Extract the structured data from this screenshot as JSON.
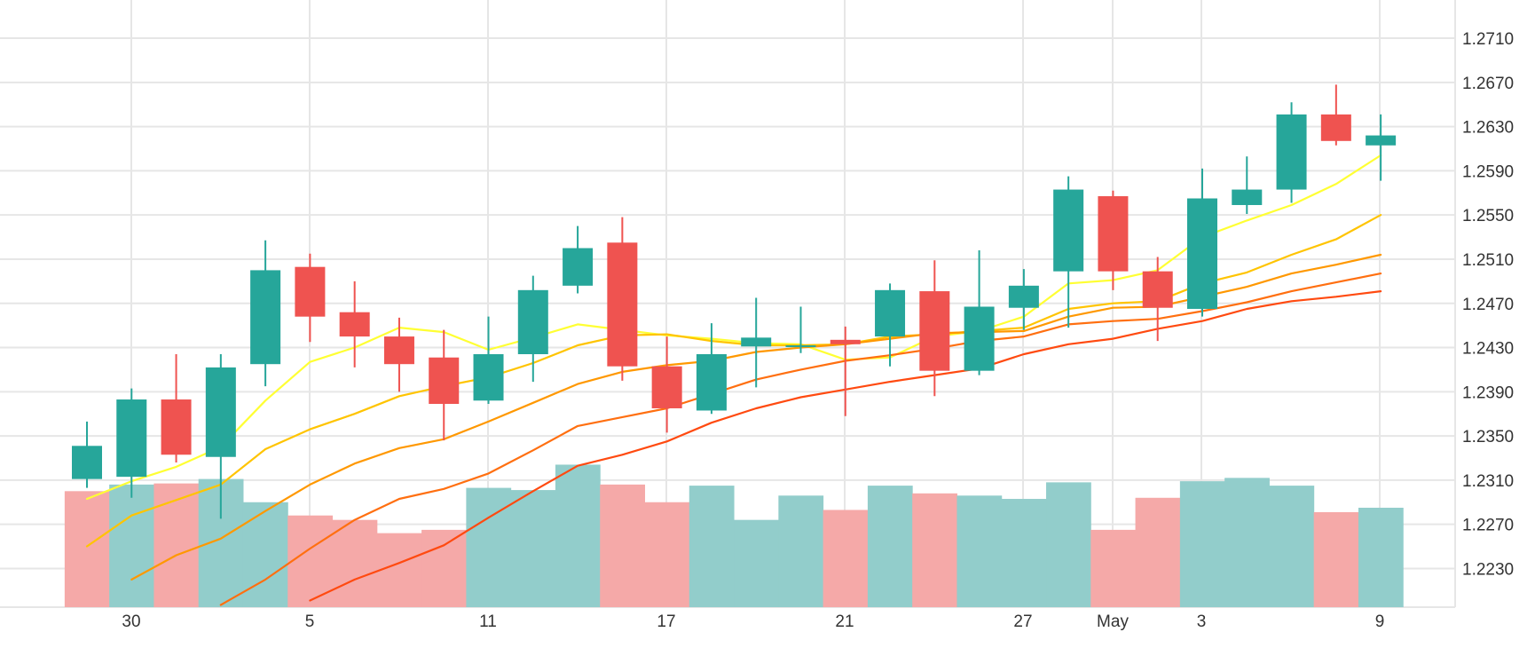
{
  "chart_data": {
    "type": "candlestick",
    "x_ticks": [
      "30",
      "5",
      "11",
      "17",
      "21",
      "27",
      "May",
      "3",
      "9"
    ],
    "y_ticks": [
      "1.2230",
      "1.2270",
      "1.2310",
      "1.2350",
      "1.2390",
      "1.2430",
      "1.2470",
      "1.2510",
      "1.2550",
      "1.2590",
      "1.2630",
      "1.2670",
      "1.2710"
    ],
    "y_range": [
      1.2195,
      1.2745
    ],
    "grid": true,
    "colors": {
      "up": "#26a69a",
      "down": "#ef5350",
      "volume_up": "#92cdcb",
      "volume_down": "#f5a9a8",
      "grid": "#e6e6e6",
      "ma": [
        "#ffff33",
        "#ffc400",
        "#ff9800",
        "#ff6f10",
        "#ff4a10"
      ]
    },
    "candles": [
      {
        "o": 1.2311,
        "h": 1.2363,
        "l": 1.2303,
        "c": 1.2341
      },
      {
        "o": 1.2313,
        "h": 1.2393,
        "l": 1.2294,
        "c": 1.2383
      },
      {
        "o": 1.2383,
        "h": 1.2424,
        "l": 1.2326,
        "c": 1.2333
      },
      {
        "o": 1.2331,
        "h": 1.2424,
        "l": 1.2275,
        "c": 1.2412
      },
      {
        "o": 1.2415,
        "h": 1.2527,
        "l": 1.2395,
        "c": 1.25
      },
      {
        "o": 1.2503,
        "h": 1.2515,
        "l": 1.2435,
        "c": 1.2458
      },
      {
        "o": 1.2462,
        "h": 1.249,
        "l": 1.2412,
        "c": 1.244
      },
      {
        "o": 1.244,
        "h": 1.2457,
        "l": 1.239,
        "c": 1.2415
      },
      {
        "o": 1.2421,
        "h": 1.2446,
        "l": 1.2346,
        "c": 1.2379
      },
      {
        "o": 1.2382,
        "h": 1.2458,
        "l": 1.2379,
        "c": 1.2424
      },
      {
        "o": 1.2424,
        "h": 1.2495,
        "l": 1.2399,
        "c": 1.2482
      },
      {
        "o": 1.2486,
        "h": 1.254,
        "l": 1.2479,
        "c": 1.252
      },
      {
        "o": 1.2525,
        "h": 1.2548,
        "l": 1.24,
        "c": 1.2413
      },
      {
        "o": 1.2413,
        "h": 1.244,
        "l": 1.2353,
        "c": 1.2375
      },
      {
        "o": 1.2373,
        "h": 1.2452,
        "l": 1.237,
        "c": 1.2424
      },
      {
        "o": 1.2431,
        "h": 1.2475,
        "l": 1.2394,
        "c": 1.2439
      },
      {
        "o": 1.2432,
        "h": 1.2467,
        "l": 1.2425,
        "c": 1.2432
      },
      {
        "o": 1.2437,
        "h": 1.2449,
        "l": 1.2368,
        "c": 1.2433
      },
      {
        "o": 1.244,
        "h": 1.2488,
        "l": 1.2413,
        "c": 1.2482
      },
      {
        "o": 1.2481,
        "h": 1.2509,
        "l": 1.2386,
        "c": 1.2409
      },
      {
        "o": 1.2409,
        "h": 1.2518,
        "l": 1.2405,
        "c": 1.2467
      },
      {
        "o": 1.2466,
        "h": 1.2501,
        "l": 1.2446,
        "c": 1.2486
      },
      {
        "o": 1.2499,
        "h": 1.2585,
        "l": 1.2448,
        "c": 1.2573
      },
      {
        "o": 1.2567,
        "h": 1.2572,
        "l": 1.2482,
        "c": 1.2499
      },
      {
        "o": 1.2499,
        "h": 1.2512,
        "l": 1.2436,
        "c": 1.2466
      },
      {
        "o": 1.2465,
        "h": 1.2592,
        "l": 1.2458,
        "c": 1.2565
      },
      {
        "o": 1.2559,
        "h": 1.2603,
        "l": 1.2551,
        "c": 1.2573
      },
      {
        "o": 1.2573,
        "h": 1.2652,
        "l": 1.2561,
        "c": 1.2641
      },
      {
        "o": 1.2641,
        "h": 1.2668,
        "l": 1.2613,
        "c": 1.2617
      },
      {
        "o": 1.2613,
        "h": 1.2641,
        "l": 1.2581,
        "c": 1.2622
      }
    ],
    "volume": [
      {
        "v": 1.23,
        "dir": "down"
      },
      {
        "v": 1.2306,
        "dir": "up"
      },
      {
        "v": 1.2307,
        "dir": "down"
      },
      {
        "v": 1.2311,
        "dir": "up"
      },
      {
        "v": 1.229,
        "dir": "up"
      },
      {
        "v": 1.2278,
        "dir": "down"
      },
      {
        "v": 1.2274,
        "dir": "down"
      },
      {
        "v": 1.2262,
        "dir": "down"
      },
      {
        "v": 1.2265,
        "dir": "down"
      },
      {
        "v": 1.2303,
        "dir": "up"
      },
      {
        "v": 1.2301,
        "dir": "up"
      },
      {
        "v": 1.2324,
        "dir": "up"
      },
      {
        "v": 1.2306,
        "dir": "down"
      },
      {
        "v": 1.229,
        "dir": "down"
      },
      {
        "v": 1.2305,
        "dir": "up"
      },
      {
        "v": 1.2274,
        "dir": "up"
      },
      {
        "v": 1.2296,
        "dir": "up"
      },
      {
        "v": 1.2283,
        "dir": "down"
      },
      {
        "v": 1.2305,
        "dir": "up"
      },
      {
        "v": 1.2298,
        "dir": "down"
      },
      {
        "v": 1.2296,
        "dir": "up"
      },
      {
        "v": 1.2293,
        "dir": "up"
      },
      {
        "v": 1.2308,
        "dir": "up"
      },
      {
        "v": 1.2265,
        "dir": "down"
      },
      {
        "v": 1.2294,
        "dir": "down"
      },
      {
        "v": 1.2309,
        "dir": "up"
      },
      {
        "v": 1.2312,
        "dir": "up"
      },
      {
        "v": 1.2305,
        "dir": "up"
      },
      {
        "v": 1.2281,
        "dir": "down"
      },
      {
        "v": 1.2285,
        "dir": "up"
      }
    ],
    "moving_averages": [
      {
        "color": "yellow",
        "values": [
          1.2293,
          1.2309,
          1.2322,
          1.234,
          1.2382,
          1.2417,
          1.243,
          1.2448,
          1.2444,
          1.2428,
          1.2439,
          1.2451,
          1.2446,
          1.2441,
          1.2438,
          1.2434,
          1.2433,
          1.2419,
          1.2421,
          1.244,
          1.2445,
          1.2458,
          1.2488,
          1.2491,
          1.25,
          1.253,
          1.2545,
          1.2559,
          1.2578,
          1.2604
        ]
      },
      {
        "color": "gold",
        "values": [
          1.225,
          1.2278,
          1.2292,
          1.2306,
          1.2338,
          1.2356,
          1.237,
          1.2386,
          1.2395,
          1.2403,
          1.2416,
          1.2432,
          1.2441,
          1.2442,
          1.2436,
          1.2432,
          1.2432,
          1.2433,
          1.244,
          1.2442,
          1.2445,
          1.2448,
          1.2465,
          1.247,
          1.2472,
          1.2488,
          1.2498,
          1.2514,
          1.2528,
          1.255
        ]
      },
      {
        "color": "orange",
        "values": [
          null,
          1.222,
          1.2242,
          1.2257,
          1.2282,
          1.2306,
          1.2325,
          1.2339,
          1.2347,
          1.2363,
          1.238,
          1.2397,
          1.2408,
          1.2414,
          1.2418,
          1.2426,
          1.243,
          1.2433,
          1.2438,
          1.2443,
          1.2444,
          1.2445,
          1.2458,
          1.2466,
          1.2467,
          1.2476,
          1.2485,
          1.2497,
          1.2505,
          1.2514
        ]
      },
      {
        "color": "dark-orange",
        "values": [
          null,
          null,
          null,
          1.2197,
          1.222,
          1.2248,
          1.2274,
          1.2293,
          1.2302,
          1.2316,
          1.2337,
          1.2359,
          1.2367,
          1.2375,
          1.2388,
          1.2401,
          1.241,
          1.2418,
          1.2423,
          1.2429,
          1.2436,
          1.244,
          1.2451,
          1.2454,
          1.2456,
          1.2463,
          1.2471,
          1.2481,
          1.2489,
          1.2497
        ]
      },
      {
        "color": "red-orange",
        "values": [
          null,
          null,
          null,
          null,
          null,
          1.2201,
          1.222,
          1.2235,
          1.2251,
          1.2276,
          1.23,
          1.2323,
          1.2333,
          1.2345,
          1.2362,
          1.2375,
          1.2385,
          1.2392,
          1.2399,
          1.2405,
          1.2411,
          1.2424,
          1.2433,
          1.2438,
          1.2447,
          1.2454,
          1.2465,
          1.2472,
          1.2476,
          1.2481
        ]
      }
    ]
  }
}
